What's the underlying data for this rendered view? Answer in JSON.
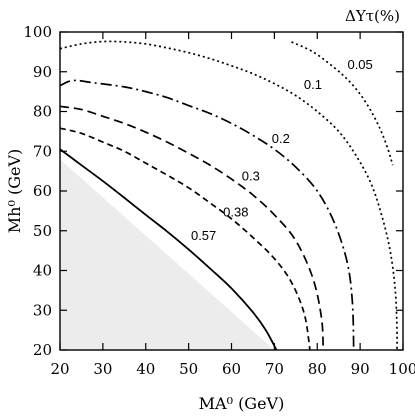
{
  "chart_data": {
    "type": "line",
    "title": "ΔYτ(%)",
    "xlabel": "MA⁰ (GeV)",
    "ylabel": "Mh⁰ (GeV)",
    "xlim": [
      20,
      100
    ],
    "ylim": [
      20,
      100
    ],
    "xticks": [
      20,
      30,
      40,
      50,
      60,
      70,
      80,
      90,
      100
    ],
    "yticks": [
      20,
      30,
      40,
      50,
      60,
      70,
      80,
      90,
      100
    ],
    "grid": false,
    "excluded_region": {
      "fill": "#ececec",
      "points": [
        [
          20,
          20
        ],
        [
          20,
          68
        ],
        [
          70,
          20
        ]
      ]
    },
    "series": [
      {
        "name": "0.57",
        "style": "solid",
        "label_at": [
          53.5,
          48.5
        ],
        "points": [
          [
            20,
            70.5
          ],
          [
            25,
            66.5
          ],
          [
            30,
            62.5
          ],
          [
            35,
            58.3
          ],
          [
            40,
            54
          ],
          [
            45,
            49.8
          ],
          [
            50,
            45.3
          ],
          [
            55,
            40.5
          ],
          [
            60,
            35.5
          ],
          [
            65,
            29.5
          ],
          [
            68,
            25
          ],
          [
            70.5,
            20
          ]
        ]
      },
      {
        "name": "0.38",
        "style": "dash-short",
        "label_at": [
          61,
          54.5
        ],
        "points": [
          [
            20,
            75.8
          ],
          [
            25,
            74.5
          ],
          [
            30,
            72.3
          ],
          [
            35,
            70
          ],
          [
            40,
            67
          ],
          [
            45,
            64
          ],
          [
            50,
            60.8
          ],
          [
            55,
            57
          ],
          [
            60,
            53
          ],
          [
            65,
            48.3
          ],
          [
            70,
            43
          ],
          [
            74,
            37
          ],
          [
            77,
            29
          ],
          [
            78.3,
            20
          ]
        ]
      },
      {
        "name": "0.3",
        "style": "dash",
        "label_at": [
          64.5,
          63.5
        ],
        "points": [
          [
            20,
            81.3
          ],
          [
            25,
            80.5
          ],
          [
            30,
            78.8
          ],
          [
            35,
            77
          ],
          [
            40,
            74.8
          ],
          [
            45,
            72.3
          ],
          [
            50,
            69.5
          ],
          [
            55,
            66.5
          ],
          [
            60,
            63
          ],
          [
            65,
            59
          ],
          [
            70,
            54
          ],
          [
            75,
            47.5
          ],
          [
            79,
            38
          ],
          [
            81,
            28
          ],
          [
            81.4,
            20
          ]
        ]
      },
      {
        "name": "0.2",
        "style": "dash-dot",
        "label_at": [
          71.5,
          73
        ],
        "points": [
          [
            20,
            86.5
          ],
          [
            23,
            87.8
          ],
          [
            28,
            87.2
          ],
          [
            35,
            86.2
          ],
          [
            40,
            85
          ],
          [
            45,
            83.5
          ],
          [
            50,
            81.5
          ],
          [
            55,
            79.5
          ],
          [
            60,
            77
          ],
          [
            65,
            74
          ],
          [
            70,
            70.5
          ],
          [
            75,
            66
          ],
          [
            80,
            60
          ],
          [
            84,
            52
          ],
          [
            87,
            42
          ],
          [
            88.2,
            32
          ],
          [
            88.5,
            20
          ]
        ]
      },
      {
        "name": "0.1",
        "style": "dot",
        "label_at": [
          79,
          86.5
        ],
        "points": [
          [
            20,
            95.8
          ],
          [
            25,
            97
          ],
          [
            30,
            97.6
          ],
          [
            35,
            97.5
          ],
          [
            40,
            97
          ],
          [
            45,
            96
          ],
          [
            50,
            94.8
          ],
          [
            55,
            93.3
          ],
          [
            60,
            91.5
          ],
          [
            65,
            89.5
          ],
          [
            70,
            87
          ],
          [
            75,
            84
          ],
          [
            80,
            80
          ],
          [
            85,
            75
          ],
          [
            89,
            69
          ],
          [
            92.5,
            62
          ],
          [
            95,
            54
          ],
          [
            97,
            45
          ],
          [
            98.2,
            35
          ],
          [
            98.6,
            25
          ],
          [
            98.6,
            20
          ]
        ]
      },
      {
        "name": "0.05",
        "style": "dot",
        "label_at": [
          90,
          91.5
        ],
        "points": [
          [
            74,
            97.5
          ],
          [
            79,
            95
          ],
          [
            84,
            91
          ],
          [
            88,
            87
          ],
          [
            91.5,
            82
          ],
          [
            94.5,
            76
          ],
          [
            96.5,
            70.5
          ],
          [
            97.6,
            66.5
          ]
        ]
      }
    ]
  }
}
